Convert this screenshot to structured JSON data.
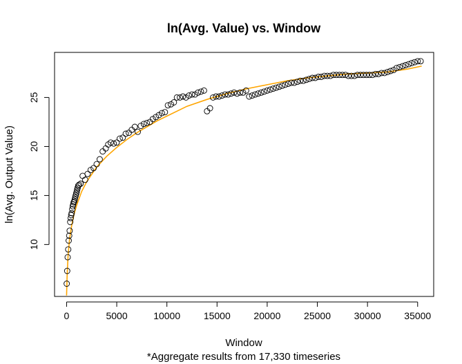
{
  "chart_data": {
    "type": "scatter",
    "title": "ln(Avg. Value) vs. Window",
    "xlabel": "Window",
    "ylabel": "ln(Avg. Output Value)",
    "note": "*Aggregate results from 17,330 timeseries",
    "xlim": [
      -1200,
      36600
    ],
    "ylim": [
      4.7,
      29.6
    ],
    "x_ticks": [
      0,
      5000,
      10000,
      15000,
      20000,
      25000,
      30000,
      35000
    ],
    "y_ticks": [
      10,
      15,
      20,
      25
    ],
    "grid": false,
    "colors": {
      "points": "#000000",
      "fit": "#ffa500"
    },
    "series": [
      {
        "type": "scatter",
        "marker": "open-circle",
        "x": [
          10,
          60,
          110,
          160,
          210,
          260,
          310,
          360,
          410,
          460,
          510,
          560,
          610,
          660,
          710,
          760,
          810,
          860,
          910,
          960,
          1010,
          1060,
          1110,
          1160,
          1250,
          1400,
          1600,
          1850,
          2100,
          2400,
          2700,
          3000,
          3300,
          3600,
          3900,
          4150,
          4400,
          4700,
          5000,
          5300,
          5600,
          5900,
          6200,
          6500,
          6800,
          7100,
          7400,
          7700,
          8000,
          8300,
          8600,
          8900,
          9200,
          9500,
          9800,
          10100,
          10400,
          10700,
          11000,
          11300,
          11600,
          11900,
          12200,
          12500,
          12800,
          13100,
          13400,
          13700,
          14000,
          14300,
          14600,
          14900,
          15200,
          15500,
          15800,
          16100,
          16400,
          16700,
          17000,
          17300,
          17600,
          17900,
          18200,
          18500,
          18800,
          19100,
          19400,
          19700,
          20000,
          20300,
          20600,
          20900,
          21200,
          21500,
          21800,
          22100,
          22400,
          22700,
          23000,
          23300,
          23600,
          23900,
          24200,
          24500,
          24800,
          25100,
          25400,
          25700,
          26000,
          26300,
          26600,
          26900,
          27200,
          27500,
          27800,
          28100,
          28400,
          28700,
          29000,
          29300,
          29600,
          29900,
          30200,
          30500,
          30800,
          31100,
          31400,
          31700,
          32000,
          32300,
          32600,
          32900,
          33200,
          33500,
          33800,
          34100,
          34400,
          34700,
          35000,
          35300
        ],
        "y": [
          6.0,
          7.3,
          8.7,
          9.5,
          10.4,
          10.9,
          11.4,
          12.3,
          12.7,
          13.0,
          13.2,
          13.6,
          13.9,
          14.1,
          14.3,
          14.4,
          14.6,
          14.8,
          15.0,
          15.2,
          15.4,
          15.6,
          15.8,
          16.0,
          16.1,
          16.2,
          17.0,
          16.6,
          17.2,
          17.6,
          17.8,
          18.2,
          18.7,
          19.5,
          19.8,
          20.2,
          20.4,
          20.3,
          20.4,
          20.8,
          20.9,
          21.3,
          21.4,
          21.7,
          22.0,
          21.5,
          22.1,
          22.3,
          22.4,
          22.5,
          22.8,
          23.0,
          23.2,
          23.4,
          23.5,
          24.2,
          24.3,
          24.5,
          25.0,
          25.0,
          25.1,
          25.0,
          25.2,
          25.3,
          25.3,
          25.5,
          25.6,
          25.7,
          23.6,
          23.9,
          25.0,
          25.1,
          25.1,
          25.2,
          25.3,
          25.3,
          25.4,
          25.5,
          25.4,
          25.5,
          25.5,
          25.7,
          25.1,
          25.2,
          25.3,
          25.4,
          25.5,
          25.6,
          25.7,
          25.8,
          25.9,
          26.0,
          26.1,
          26.2,
          26.3,
          26.4,
          26.5,
          26.5,
          26.6,
          26.7,
          26.7,
          26.8,
          26.9,
          27.0,
          27.0,
          27.1,
          27.1,
          27.2,
          27.2,
          27.2,
          27.3,
          27.3,
          27.3,
          27.3,
          27.3,
          27.2,
          27.2,
          27.2,
          27.3,
          27.3,
          27.3,
          27.3,
          27.3,
          27.3,
          27.4,
          27.4,
          27.5,
          27.5,
          27.6,
          27.7,
          27.8,
          28.0,
          28.1,
          28.2,
          28.3,
          28.4,
          28.5,
          28.6,
          28.7,
          28.7
        ]
      },
      {
        "type": "line",
        "fit": true,
        "x": [
          0,
          50,
          150,
          300,
          500,
          750,
          1000,
          1500,
          2000,
          3000,
          4000,
          5000,
          6000,
          7000,
          8000,
          9000,
          10000,
          12000,
          14000,
          16000,
          18000,
          20000,
          22000,
          24000,
          26000,
          28000,
          30000,
          32000,
          34000,
          35400
        ],
        "y": [
          4.8,
          6.8,
          8.9,
          10.6,
          11.9,
          13.1,
          14.0,
          15.4,
          16.4,
          17.9,
          19.0,
          19.9,
          20.7,
          21.4,
          22.0,
          22.6,
          23.1,
          24.1,
          24.8,
          25.4,
          25.9,
          26.3,
          26.7,
          27.0,
          27.2,
          27.4,
          27.5,
          27.6,
          27.9,
          28.2
        ]
      }
    ]
  }
}
